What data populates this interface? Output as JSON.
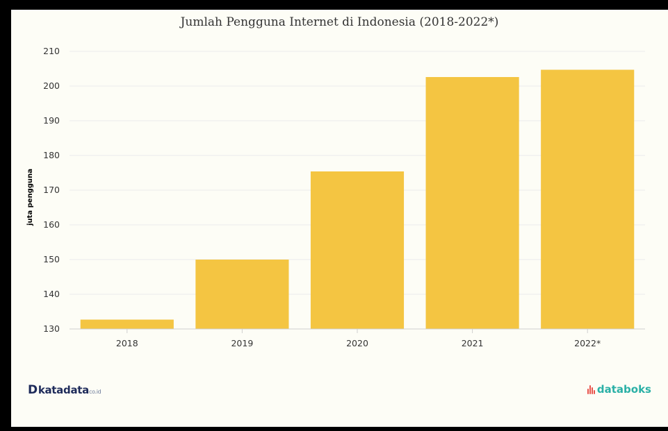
{
  "chart_data": {
    "type": "bar",
    "title": "Jumlah Pengguna Internet di Indonesia (2018-2022*)",
    "ylabel": "juta pengguna",
    "xlabel": "",
    "categories": [
      "2018",
      "2019",
      "2020",
      "2021",
      "2022*"
    ],
    "values": [
      132.7,
      150.0,
      175.4,
      202.6,
      204.7
    ],
    "ylim": [
      130,
      210
    ],
    "yticks": [
      130,
      140,
      150,
      160,
      170,
      180,
      190,
      200,
      210
    ],
    "grid": true,
    "legend": "none",
    "bar_color": "#f4c542"
  },
  "branding": {
    "left_logo_text": "katadata",
    "left_logo_suffix": "co.id",
    "right_logo_text": "databoks"
  }
}
